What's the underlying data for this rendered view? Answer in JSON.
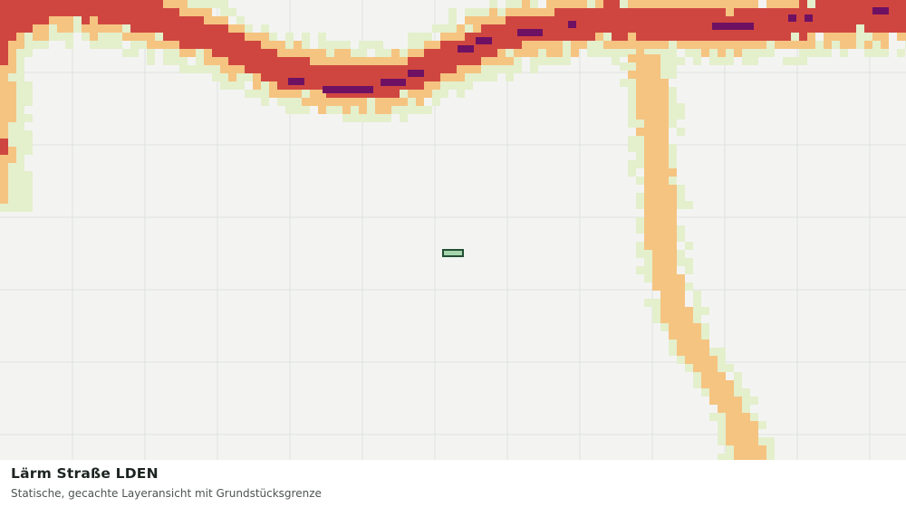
{
  "map": {
    "background": "#f3f4f2",
    "gridline_color": "#dfe2de",
    "noise_classes": [
      {
        "name": "class-1",
        "color": "#e4efcc"
      },
      {
        "name": "class-2",
        "color": "#f5c481"
      },
      {
        "name": "class-3",
        "color": "#cf4640"
      },
      {
        "name": "class-4",
        "color": "#6e1163"
      }
    ],
    "parcel": {
      "fill": "#a6d5ad",
      "stroke": "#234f34"
    }
  },
  "caption": {
    "title": "Lärm Straße LDEN",
    "subtitle": "Statische, gecachte Layeransicht mit Grundstücksgrenze"
  }
}
